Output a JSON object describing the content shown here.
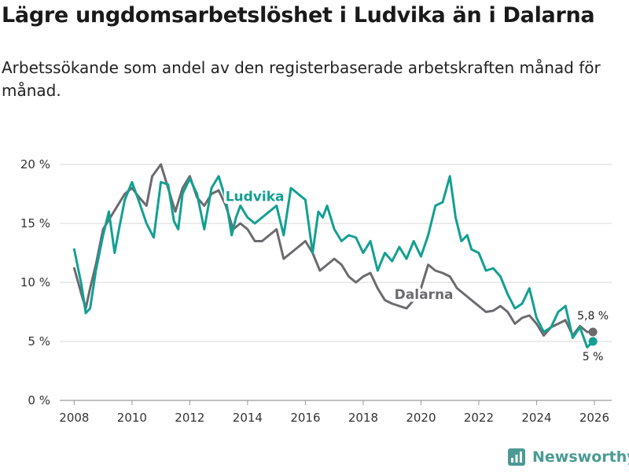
{
  "title": "Lägre ungdomsarbetslöshet i Ludvika än i Dalarna",
  "subtitle": "Arbetssökande som andel av den registerbaserade arbetskraften månad för månad.",
  "brand": {
    "name": "Newsworthy",
    "color": "#4b9b94"
  },
  "chart_data": {
    "type": "line",
    "title": "Lägre ungdomsarbetslöshet i Ludvika än i Dalarna",
    "xlabel": "",
    "ylabel": "",
    "xlim": [
      2007.5,
      2026.6
    ],
    "ylim": [
      0,
      20
    ],
    "grid": true,
    "x_ticks": [
      2008,
      2010,
      2012,
      2014,
      2016,
      2018,
      2020,
      2022,
      2024,
      2026
    ],
    "x_tick_labels": [
      "2008",
      "2010",
      "2012",
      "2014",
      "2016",
      "2018",
      "2020",
      "2022",
      "2024",
      "2026"
    ],
    "y_ticks": [
      0,
      5,
      10,
      15,
      20
    ],
    "y_tick_labels": [
      "0 %",
      "5 %",
      "10 %",
      "15 %",
      "20 %"
    ],
    "series": [
      {
        "name": "Ludvika",
        "color": "#12a092",
        "x": [
          2008.0,
          2008.25,
          2008.4,
          2008.55,
          2008.75,
          2009.0,
          2009.2,
          2009.4,
          2009.55,
          2009.75,
          2010.0,
          2010.25,
          2010.5,
          2010.75,
          2011.0,
          2011.25,
          2011.45,
          2011.6,
          2011.75,
          2012.0,
          2012.25,
          2012.5,
          2012.75,
          2013.0,
          2013.25,
          2013.45,
          2013.6,
          2013.75,
          2014.0,
          2014.25,
          2014.5,
          2014.75,
          2015.0,
          2015.25,
          2015.5,
          2015.75,
          2016.0,
          2016.25,
          2016.45,
          2016.6,
          2016.75,
          2017.0,
          2017.25,
          2017.5,
          2017.75,
          2018.0,
          2018.25,
          2018.5,
          2018.75,
          2019.0,
          2019.25,
          2019.5,
          2019.75,
          2020.0,
          2020.25,
          2020.5,
          2020.75,
          2021.0,
          2021.2,
          2021.4,
          2021.6,
          2021.75,
          2022.0,
          2022.25,
          2022.5,
          2022.75,
          2023.0,
          2023.25,
          2023.5,
          2023.75,
          2024.0,
          2024.25,
          2024.5,
          2024.75,
          2025.0,
          2025.25,
          2025.5,
          2025.75,
          2025.95
        ],
        "values": [
          12.8,
          9.8,
          7.4,
          7.8,
          11.0,
          14.0,
          16.0,
          12.5,
          14.5,
          17.0,
          18.5,
          16.8,
          15.0,
          13.8,
          18.5,
          18.3,
          15.2,
          14.5,
          17.5,
          18.8,
          17.5,
          14.5,
          18.0,
          19.0,
          17.0,
          14.0,
          15.5,
          16.5,
          15.5,
          15.0,
          15.5,
          16.0,
          16.5,
          14.0,
          18.0,
          17.5,
          17.0,
          12.5,
          16.0,
          15.5,
          16.5,
          14.5,
          13.5,
          14.0,
          13.8,
          12.5,
          13.5,
          11.0,
          12.5,
          11.8,
          13.0,
          12.0,
          13.5,
          12.2,
          14.0,
          16.5,
          16.8,
          19.0,
          15.5,
          13.5,
          14.0,
          12.8,
          12.5,
          11.0,
          11.2,
          10.5,
          9.0,
          7.8,
          8.2,
          9.5,
          7.0,
          5.8,
          6.2,
          7.5,
          8.0,
          5.3,
          6.2,
          4.5,
          5.0
        ]
      },
      {
        "name": "Dalarna",
        "color": "#6c6a6e",
        "x": [
          2008.0,
          2008.25,
          2008.4,
          2008.55,
          2008.75,
          2009.0,
          2009.25,
          2009.5,
          2009.75,
          2010.0,
          2010.25,
          2010.5,
          2010.7,
          2011.0,
          2011.25,
          2011.5,
          2011.75,
          2012.0,
          2012.25,
          2012.5,
          2012.75,
          2013.0,
          2013.25,
          2013.5,
          2013.75,
          2014.0,
          2014.25,
          2014.5,
          2014.75,
          2015.0,
          2015.25,
          2015.5,
          2015.75,
          2016.0,
          2016.25,
          2016.5,
          2016.75,
          2017.0,
          2017.25,
          2017.5,
          2017.75,
          2018.0,
          2018.25,
          2018.5,
          2018.75,
          2019.0,
          2019.25,
          2019.5,
          2019.75,
          2020.0,
          2020.25,
          2020.5,
          2020.75,
          2021.0,
          2021.25,
          2021.5,
          2021.75,
          2022.0,
          2022.25,
          2022.5,
          2022.75,
          2023.0,
          2023.25,
          2023.5,
          2023.75,
          2024.0,
          2024.25,
          2024.5,
          2024.75,
          2025.0,
          2025.25,
          2025.5,
          2025.75,
          2025.95
        ],
        "values": [
          11.2,
          9.0,
          7.8,
          9.5,
          11.5,
          14.5,
          15.5,
          16.5,
          17.5,
          18.0,
          17.2,
          16.5,
          19.0,
          20.0,
          18.0,
          16.0,
          18.0,
          19.0,
          17.2,
          16.5,
          17.5,
          17.8,
          16.5,
          14.5,
          15.0,
          14.5,
          13.5,
          13.5,
          14.0,
          14.5,
          12.0,
          12.5,
          13.0,
          13.5,
          12.5,
          11.0,
          11.5,
          12.0,
          11.5,
          10.5,
          10.0,
          10.5,
          10.8,
          9.5,
          8.5,
          8.2,
          8.0,
          7.8,
          8.5,
          9.5,
          11.5,
          11.0,
          10.8,
          10.5,
          9.5,
          9.0,
          8.5,
          8.0,
          7.5,
          7.6,
          8.0,
          7.5,
          6.5,
          7.0,
          7.2,
          6.5,
          5.5,
          6.2,
          6.5,
          6.8,
          5.5,
          6.3,
          5.8,
          5.8
        ]
      }
    ],
    "annotations": [
      {
        "series": "Ludvika",
        "text": "Ludvika",
        "anchor_x": 2014.25,
        "anchor_y": 16.9
      },
      {
        "series": "Dalarna",
        "text": "Dalarna",
        "anchor_x": 2020.1,
        "anchor_y": 8.6
      }
    ],
    "end_labels": [
      {
        "series": "Dalarna",
        "text": "5,8 %",
        "value": 5.8
      },
      {
        "series": "Ludvika",
        "text": "5 %",
        "value": 5.0
      }
    ]
  }
}
